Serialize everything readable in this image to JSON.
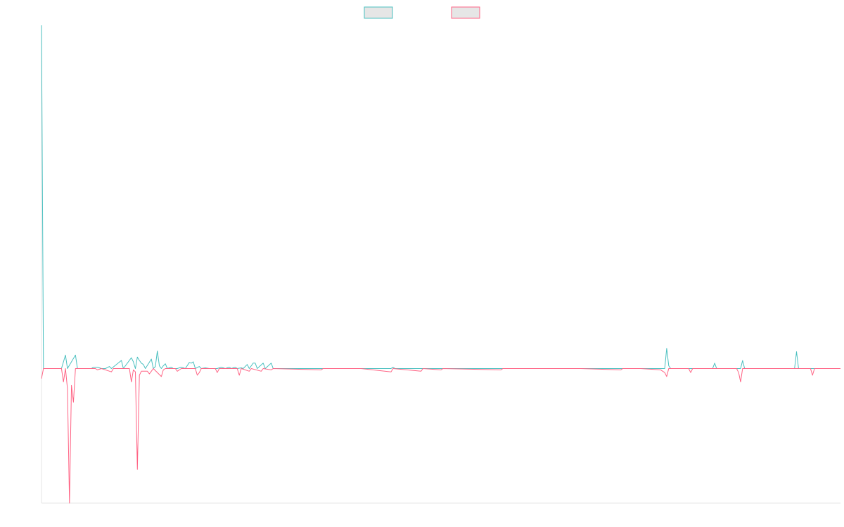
{
  "chart_data": {
    "type": "line",
    "title": "",
    "xlabel": "",
    "ylabel": "",
    "grid": false,
    "legend_position": "top-center",
    "x_count": 400,
    "ylim": [
      -200,
      510
    ],
    "series": [
      {
        "color": "#4bc0c0",
        "sparse_values": [
          [
            0,
            510
          ],
          [
            1,
            0
          ],
          [
            5,
            0
          ],
          [
            10,
            0
          ],
          [
            12,
            20
          ],
          [
            13,
            0
          ],
          [
            17,
            20
          ],
          [
            18,
            0
          ],
          [
            25,
            0
          ],
          [
            26,
            2
          ],
          [
            28,
            2
          ],
          [
            30,
            0
          ],
          [
            32,
            0
          ],
          [
            34,
            3
          ],
          [
            35,
            0
          ],
          [
            40,
            12
          ],
          [
            41,
            0
          ],
          [
            45,
            16
          ],
          [
            46,
            10
          ],
          [
            47,
            0
          ],
          [
            48,
            17
          ],
          [
            49,
            12
          ],
          [
            50,
            8
          ],
          [
            51,
            6
          ],
          [
            52,
            0
          ],
          [
            55,
            14
          ],
          [
            56,
            0
          ],
          [
            57,
            3
          ],
          [
            58,
            26
          ],
          [
            59,
            4
          ],
          [
            60,
            0
          ],
          [
            61,
            4
          ],
          [
            62,
            7
          ],
          [
            63,
            0
          ],
          [
            65,
            2
          ],
          [
            66,
            0
          ],
          [
            68,
            0
          ],
          [
            70,
            2
          ],
          [
            72,
            0
          ],
          [
            74,
            9
          ],
          [
            75,
            8
          ],
          [
            76,
            10
          ],
          [
            77,
            0
          ],
          [
            79,
            3
          ],
          [
            80,
            0
          ],
          [
            82,
            1
          ],
          [
            84,
            0
          ],
          [
            88,
            0
          ],
          [
            90,
            2
          ],
          [
            92,
            0
          ],
          [
            94,
            2
          ],
          [
            95,
            0
          ],
          [
            97,
            2
          ],
          [
            98,
            0
          ],
          [
            100,
            1
          ],
          [
            101,
            0
          ],
          [
            103,
            6
          ],
          [
            104,
            0
          ],
          [
            106,
            8
          ],
          [
            107,
            8
          ],
          [
            108,
            0
          ],
          [
            111,
            8
          ],
          [
            112,
            0
          ],
          [
            115,
            8
          ],
          [
            116,
            0
          ],
          [
            120,
            0
          ],
          [
            130,
            0
          ],
          [
            150,
            0
          ],
          [
            160,
            0
          ],
          [
            175,
            0
          ],
          [
            176,
            2
          ],
          [
            177,
            0
          ],
          [
            200,
            0
          ],
          [
            220,
            0
          ],
          [
            240,
            0
          ],
          [
            260,
            0
          ],
          [
            280,
            0
          ],
          [
            300,
            0
          ],
          [
            310,
            0
          ],
          [
            312,
            0
          ],
          [
            313,
            30
          ],
          [
            314,
            4
          ],
          [
            315,
            0
          ],
          [
            330,
            0
          ],
          [
            336,
            0
          ],
          [
            337,
            8
          ],
          [
            338,
            0
          ],
          [
            350,
            0
          ],
          [
            351,
            12
          ],
          [
            352,
            0
          ],
          [
            370,
            0
          ],
          [
            377,
            0
          ],
          [
            378,
            25
          ],
          [
            379,
            0
          ],
          [
            390,
            0
          ],
          [
            400,
            0
          ]
        ]
      },
      {
        "color": "#ff6384",
        "sparse_values": [
          [
            0,
            -15
          ],
          [
            1,
            0
          ],
          [
            10,
            0
          ],
          [
            11,
            -20
          ],
          [
            12,
            0
          ],
          [
            13,
            -30
          ],
          [
            14,
            -200
          ],
          [
            15,
            -25
          ],
          [
            16,
            -50
          ],
          [
            17,
            0
          ],
          [
            27,
            0
          ],
          [
            28,
            -2
          ],
          [
            30,
            0
          ],
          [
            35,
            -5
          ],
          [
            36,
            0
          ],
          [
            44,
            0
          ],
          [
            45,
            -20
          ],
          [
            46,
            -2
          ],
          [
            47,
            -5
          ],
          [
            48,
            -150
          ],
          [
            49,
            -10
          ],
          [
            50,
            -4
          ],
          [
            53,
            -4
          ],
          [
            54,
            -8
          ],
          [
            55,
            -4
          ],
          [
            56,
            0
          ],
          [
            60,
            -12
          ],
          [
            61,
            -2
          ],
          [
            62,
            0
          ],
          [
            67,
            0
          ],
          [
            68,
            -4
          ],
          [
            70,
            0
          ],
          [
            77,
            0
          ],
          [
            78,
            -10
          ],
          [
            79,
            -6
          ],
          [
            80,
            0
          ],
          [
            82,
            0
          ],
          [
            87,
            0
          ],
          [
            88,
            -6
          ],
          [
            89,
            0
          ],
          [
            98,
            0
          ],
          [
            99,
            -10
          ],
          [
            100,
            0
          ],
          [
            102,
            -2
          ],
          [
            104,
            -4
          ],
          [
            105,
            0
          ],
          [
            110,
            -4
          ],
          [
            111,
            0
          ],
          [
            115,
            -2
          ],
          [
            116,
            0
          ],
          [
            140,
            -2
          ],
          [
            141,
            0
          ],
          [
            160,
            0
          ],
          [
            175,
            -5
          ],
          [
            176,
            0
          ],
          [
            190,
            -4
          ],
          [
            191,
            0
          ],
          [
            200,
            -2
          ],
          [
            201,
            0
          ],
          [
            230,
            -2
          ],
          [
            231,
            0
          ],
          [
            240,
            0
          ],
          [
            270,
            0
          ],
          [
            290,
            -2
          ],
          [
            291,
            0
          ],
          [
            300,
            0
          ],
          [
            310,
            -2
          ],
          [
            311,
            -4
          ],
          [
            312,
            -6
          ],
          [
            313,
            -12
          ],
          [
            314,
            0
          ],
          [
            324,
            0
          ],
          [
            325,
            -6
          ],
          [
            326,
            0
          ],
          [
            340,
            0
          ],
          [
            348,
            0
          ],
          [
            349,
            -6
          ],
          [
            350,
            -20
          ],
          [
            351,
            0
          ],
          [
            370,
            0
          ],
          [
            385,
            0
          ],
          [
            386,
            -10
          ],
          [
            387,
            0
          ],
          [
            395,
            0
          ],
          [
            400,
            0
          ]
        ]
      }
    ]
  }
}
